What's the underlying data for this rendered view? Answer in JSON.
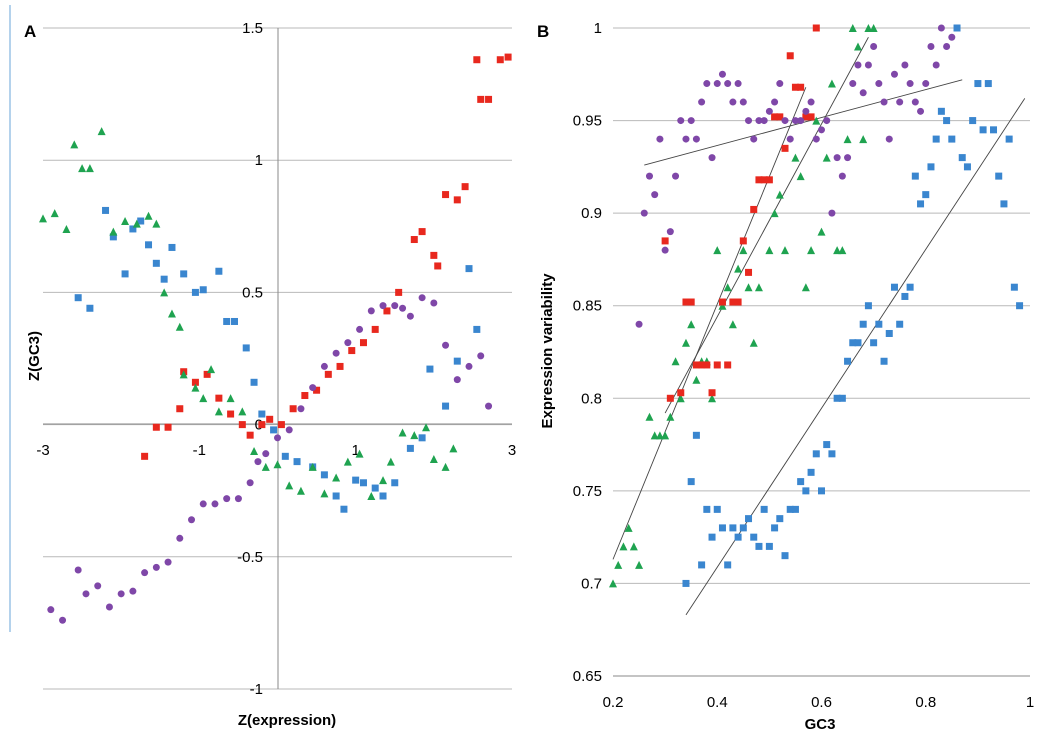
{
  "colors": {
    "red": "#e8281e",
    "blue": "#3a86cf",
    "green": "#1fa350",
    "purple": "#7f47a8"
  },
  "chart_data": [
    {
      "panel": "A",
      "type": "scatter",
      "xlabel": "Z(expression)",
      "ylabel": "Z(GC3)",
      "xlim": [
        -3,
        3
      ],
      "ylim": [
        -1,
        1.5
      ],
      "xticks": [
        -3,
        -1,
        1,
        3
      ],
      "xtick_labels": [
        "-3",
        "-1",
        "1",
        "3"
      ],
      "yticks": [
        1.5,
        1,
        0.5,
        0,
        -0.5,
        -1
      ],
      "ytick_labels": [
        "1.5",
        "1",
        "0.5",
        "0",
        "-0.5",
        "-1"
      ],
      "grid": "horizontal",
      "series": [
        {
          "color": "red",
          "marker": "square",
          "x": [
            -1.7,
            -1.55,
            -1.4,
            -1.25,
            -1.2,
            -1.05,
            -0.9,
            -0.75,
            -0.6,
            -0.45,
            -0.35,
            -0.2,
            -0.1,
            0.05,
            0.2,
            0.35,
            0.5,
            0.65,
            0.8,
            0.95,
            1.1,
            1.25,
            1.4,
            1.55,
            1.75,
            1.85,
            2.0,
            2.05,
            2.15,
            2.3,
            2.4,
            2.55,
            2.6,
            2.7,
            2.85,
            2.95
          ],
          "y": [
            -0.12,
            -0.01,
            -0.01,
            0.06,
            0.2,
            0.16,
            0.19,
            0.1,
            0.04,
            0.0,
            -0.04,
            0.0,
            0.02,
            0.0,
            0.06,
            0.11,
            0.13,
            0.19,
            0.22,
            0.28,
            0.31,
            0.36,
            0.43,
            0.5,
            0.7,
            0.73,
            0.64,
            0.6,
            0.87,
            0.85,
            0.9,
            1.38,
            1.23,
            1.23,
            1.38,
            1.39
          ]
        },
        {
          "color": "blue",
          "marker": "square",
          "x": [
            -2.55,
            -2.4,
            -2.2,
            -2.1,
            -1.95,
            -1.85,
            -1.75,
            -1.65,
            -1.55,
            -1.45,
            -1.35,
            -1.2,
            -1.05,
            -0.95,
            -0.75,
            -0.65,
            -0.55,
            -0.4,
            -0.3,
            -0.2,
            -0.05,
            0.1,
            0.25,
            0.45,
            0.6,
            0.75,
            0.85,
            1.0,
            1.1,
            1.25,
            1.35,
            1.5,
            1.7,
            1.85,
            1.95,
            2.15,
            2.3,
            2.45,
            2.55
          ],
          "y": [
            0.48,
            0.44,
            0.81,
            0.71,
            0.57,
            0.74,
            0.77,
            0.68,
            0.61,
            0.55,
            0.67,
            0.57,
            0.5,
            0.51,
            0.58,
            0.39,
            0.39,
            0.29,
            0.16,
            0.04,
            -0.02,
            -0.12,
            -0.14,
            -0.16,
            -0.19,
            -0.27,
            -0.32,
            -0.21,
            -0.22,
            -0.24,
            -0.27,
            -0.22,
            -0.09,
            -0.05,
            0.21,
            0.07,
            0.24,
            0.59,
            0.36
          ]
        },
        {
          "color": "green",
          "marker": "triangle",
          "x": [
            -3.0,
            -2.85,
            -2.7,
            -2.6,
            -2.5,
            -2.4,
            -2.25,
            -2.1,
            -1.95,
            -1.8,
            -1.65,
            -1.55,
            -1.45,
            -1.35,
            -1.25,
            -1.2,
            -1.05,
            -0.95,
            -0.85,
            -0.75,
            -0.6,
            -0.45,
            -0.3,
            -0.15,
            0.0,
            0.15,
            0.3,
            0.45,
            0.6,
            0.75,
            0.9,
            1.05,
            1.2,
            1.35,
            1.45,
            1.6,
            1.75,
            1.9,
            2.0,
            2.15,
            2.25
          ],
          "y": [
            0.78,
            0.8,
            0.74,
            1.06,
            0.97,
            0.97,
            1.11,
            0.73,
            0.77,
            0.76,
            0.79,
            0.76,
            0.5,
            0.42,
            0.37,
            0.19,
            0.14,
            0.1,
            0.21,
            0.05,
            0.1,
            0.05,
            -0.1,
            -0.16,
            -0.15,
            -0.23,
            -0.25,
            -0.16,
            -0.26,
            -0.2,
            -0.14,
            -0.11,
            -0.27,
            -0.21,
            -0.14,
            -0.03,
            -0.04,
            -0.01,
            -0.13,
            -0.16,
            -0.09
          ]
        },
        {
          "color": "purple",
          "marker": "circle",
          "x": [
            -2.9,
            -2.75,
            -2.55,
            -2.45,
            -2.3,
            -2.15,
            -2.0,
            -1.85,
            -1.7,
            -1.55,
            -1.4,
            -1.25,
            -1.1,
            -0.95,
            -0.8,
            -0.65,
            -0.5,
            -0.35,
            -0.25,
            -0.15,
            0.0,
            0.15,
            0.3,
            0.45,
            0.6,
            0.75,
            0.9,
            1.05,
            1.2,
            1.35,
            1.5,
            1.6,
            1.7,
            1.85,
            2.0,
            2.15,
            2.3,
            2.45,
            2.6,
            2.7
          ],
          "y": [
            -0.7,
            -0.74,
            -0.55,
            -0.64,
            -0.61,
            -0.69,
            -0.64,
            -0.63,
            -0.56,
            -0.54,
            -0.52,
            -0.43,
            -0.36,
            -0.3,
            -0.3,
            -0.28,
            -0.28,
            -0.22,
            -0.14,
            -0.11,
            -0.05,
            -0.02,
            0.06,
            0.14,
            0.22,
            0.27,
            0.31,
            0.36,
            0.43,
            0.45,
            0.45,
            0.44,
            0.41,
            0.48,
            0.46,
            0.3,
            0.17,
            0.22,
            0.26,
            0.07
          ]
        }
      ]
    },
    {
      "panel": "B",
      "type": "scatter",
      "xlabel": "GC3",
      "ylabel": "Expression variability",
      "xlim": [
        0.2,
        1
      ],
      "ylim": [
        0.65,
        1
      ],
      "xticks": [
        0.2,
        0.4,
        0.6,
        0.8,
        1
      ],
      "xtick_labels": [
        "0.2",
        "0.4",
        "0.6",
        "0.8",
        "1"
      ],
      "yticks": [
        0.65,
        0.7,
        0.75,
        0.8,
        0.85,
        0.9,
        0.95,
        1
      ],
      "ytick_labels": [
        "0.65",
        "0.7",
        "0.75",
        "0.8",
        "0.85",
        "0.9",
        "0.95",
        "1"
      ],
      "grid": "horizontal",
      "series": [
        {
          "color": "green",
          "marker": "triangle",
          "x": [
            0.2,
            0.21,
            0.22,
            0.23,
            0.24,
            0.25,
            0.27,
            0.28,
            0.29,
            0.3,
            0.31,
            0.32,
            0.33,
            0.34,
            0.35,
            0.36,
            0.37,
            0.38,
            0.39,
            0.4,
            0.41,
            0.42,
            0.43,
            0.44,
            0.45,
            0.46,
            0.47,
            0.48,
            0.5,
            0.51,
            0.52,
            0.53,
            0.55,
            0.56,
            0.57,
            0.58,
            0.59,
            0.6,
            0.61,
            0.62,
            0.63,
            0.64,
            0.65,
            0.66,
            0.67,
            0.68,
            0.69,
            0.7
          ],
          "y": [
            0.7,
            0.71,
            0.72,
            0.73,
            0.72,
            0.71,
            0.79,
            0.78,
            0.78,
            0.78,
            0.79,
            0.82,
            0.8,
            0.83,
            0.84,
            0.81,
            0.82,
            0.82,
            0.8,
            0.88,
            0.85,
            0.86,
            0.84,
            0.87,
            0.88,
            0.86,
            0.83,
            0.86,
            0.88,
            0.9,
            0.91,
            0.88,
            0.93,
            0.92,
            0.86,
            0.88,
            0.95,
            0.89,
            0.93,
            0.97,
            0.88,
            0.88,
            0.94,
            1.0,
            0.99,
            0.94,
            1.0,
            1.0
          ]
        },
        {
          "color": "red",
          "marker": "square",
          "x": [
            0.3,
            0.31,
            0.33,
            0.34,
            0.35,
            0.36,
            0.37,
            0.38,
            0.39,
            0.4,
            0.41,
            0.42,
            0.43,
            0.44,
            0.45,
            0.46,
            0.47,
            0.48,
            0.49,
            0.5,
            0.51,
            0.52,
            0.53,
            0.54,
            0.55,
            0.56,
            0.57,
            0.58,
            0.59
          ],
          "y": [
            0.885,
            0.8,
            0.803,
            0.852,
            0.852,
            0.818,
            0.818,
            0.818,
            0.803,
            0.818,
            0.852,
            0.818,
            0.852,
            0.852,
            0.885,
            0.868,
            0.902,
            0.918,
            0.918,
            0.918,
            0.952,
            0.952,
            0.935,
            0.985,
            0.968,
            0.968,
            0.952,
            0.952,
            1.0
          ]
        },
        {
          "color": "purple",
          "marker": "circle",
          "x": [
            0.25,
            0.26,
            0.27,
            0.28,
            0.29,
            0.3,
            0.31,
            0.32,
            0.33,
            0.34,
            0.35,
            0.36,
            0.37,
            0.38,
            0.39,
            0.4,
            0.41,
            0.42,
            0.43,
            0.44,
            0.45,
            0.46,
            0.47,
            0.48,
            0.49,
            0.5,
            0.51,
            0.52,
            0.53,
            0.54,
            0.55,
            0.56,
            0.57,
            0.58,
            0.59,
            0.6,
            0.61,
            0.62,
            0.63,
            0.64,
            0.65,
            0.66,
            0.67,
            0.68,
            0.69,
            0.7,
            0.71,
            0.72,
            0.73,
            0.74,
            0.75,
            0.76,
            0.77,
            0.78,
            0.79,
            0.8,
            0.81,
            0.82,
            0.83,
            0.84,
            0.85
          ],
          "y": [
            0.84,
            0.9,
            0.92,
            0.91,
            0.94,
            0.88,
            0.89,
            0.92,
            0.95,
            0.94,
            0.95,
            0.94,
            0.96,
            0.97,
            0.93,
            0.97,
            0.975,
            0.97,
            0.96,
            0.97,
            0.96,
            0.95,
            0.94,
            0.95,
            0.95,
            0.955,
            0.96,
            0.97,
            0.95,
            0.94,
            0.95,
            0.95,
            0.955,
            0.96,
            0.94,
            0.945,
            0.95,
            0.9,
            0.93,
            0.92,
            0.93,
            0.97,
            0.98,
            0.965,
            0.98,
            0.99,
            0.97,
            0.96,
            0.94,
            0.975,
            0.96,
            0.98,
            0.97,
            0.96,
            0.955,
            0.97,
            0.99,
            0.98,
            1.0,
            0.99,
            0.995
          ]
        },
        {
          "color": "blue",
          "marker": "square",
          "x": [
            0.34,
            0.35,
            0.36,
            0.37,
            0.38,
            0.39,
            0.4,
            0.41,
            0.42,
            0.43,
            0.44,
            0.45,
            0.46,
            0.47,
            0.48,
            0.49,
            0.5,
            0.51,
            0.52,
            0.53,
            0.54,
            0.55,
            0.56,
            0.57,
            0.58,
            0.59,
            0.6,
            0.61,
            0.62,
            0.63,
            0.64,
            0.65,
            0.66,
            0.67,
            0.68,
            0.69,
            0.7,
            0.71,
            0.72,
            0.73,
            0.74,
            0.75,
            0.76,
            0.77,
            0.78,
            0.79,
            0.8,
            0.81,
            0.82,
            0.83,
            0.84,
            0.85,
            0.86,
            0.87,
            0.88,
            0.89,
            0.9,
            0.91,
            0.92,
            0.93,
            0.94,
            0.95,
            0.96,
            0.97,
            0.98
          ],
          "y": [
            0.7,
            0.755,
            0.78,
            0.71,
            0.74,
            0.725,
            0.74,
            0.73,
            0.71,
            0.73,
            0.725,
            0.73,
            0.735,
            0.725,
            0.72,
            0.74,
            0.72,
            0.73,
            0.735,
            0.715,
            0.74,
            0.74,
            0.755,
            0.75,
            0.76,
            0.77,
            0.75,
            0.775,
            0.77,
            0.8,
            0.8,
            0.82,
            0.83,
            0.83,
            0.84,
            0.85,
            0.83,
            0.84,
            0.82,
            0.835,
            0.86,
            0.84,
            0.855,
            0.86,
            0.92,
            0.905,
            0.91,
            0.925,
            0.94,
            0.955,
            0.95,
            0.94,
            1.0,
            0.93,
            0.925,
            0.95,
            0.97,
            0.945,
            0.97,
            0.945,
            0.92,
            0.905,
            0.94,
            0.86,
            0.85
          ]
        }
      ],
      "trendlines": [
        {
          "color": "green",
          "x": [
            0.2,
            0.57
          ],
          "y": [
            0.713,
            0.968
          ]
        },
        {
          "color": "red",
          "x": [
            0.3,
            0.69
          ],
          "y": [
            0.792,
            0.995
          ]
        },
        {
          "color": "purple",
          "x": [
            0.26,
            0.87
          ],
          "y": [
            0.926,
            0.972
          ]
        },
        {
          "color": "blue",
          "x": [
            0.34,
            0.99
          ],
          "y": [
            0.683,
            0.962
          ]
        }
      ]
    }
  ]
}
